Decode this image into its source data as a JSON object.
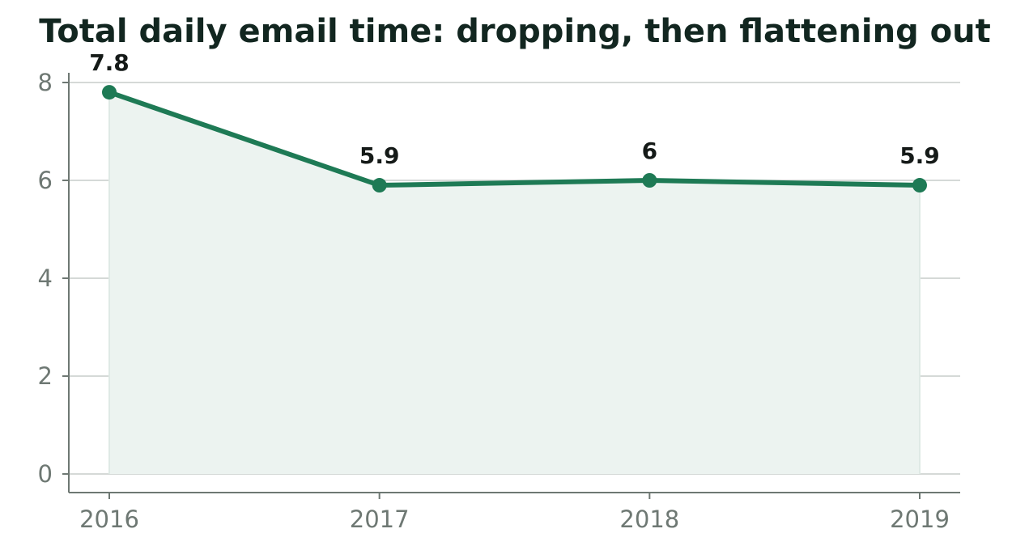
{
  "chart_data": {
    "type": "line",
    "title": "Total daily email time: dropping, then flattening out",
    "xlabel": "",
    "ylabel": "",
    "categories": [
      "2016",
      "2017",
      "2018",
      "2019"
    ],
    "series": [
      {
        "values": [
          7.8,
          5.9,
          6,
          5.9
        ],
        "data_labels": [
          "7.8",
          "5.9",
          "6",
          "5.9"
        ]
      }
    ],
    "ylim": [
      0,
      8.2
    ],
    "yticks": [
      0,
      2,
      4,
      6,
      8
    ],
    "ytick_labels": [
      "0",
      "2",
      "4",
      "6",
      "8"
    ],
    "grid": true,
    "area_fill": true,
    "colors": {
      "line": "#1e7a55",
      "area": "#ecf3f0",
      "grid": "#d5d9d7",
      "axis": "#6e7873",
      "title": "#122620",
      "data_label": "#151a18"
    }
  }
}
